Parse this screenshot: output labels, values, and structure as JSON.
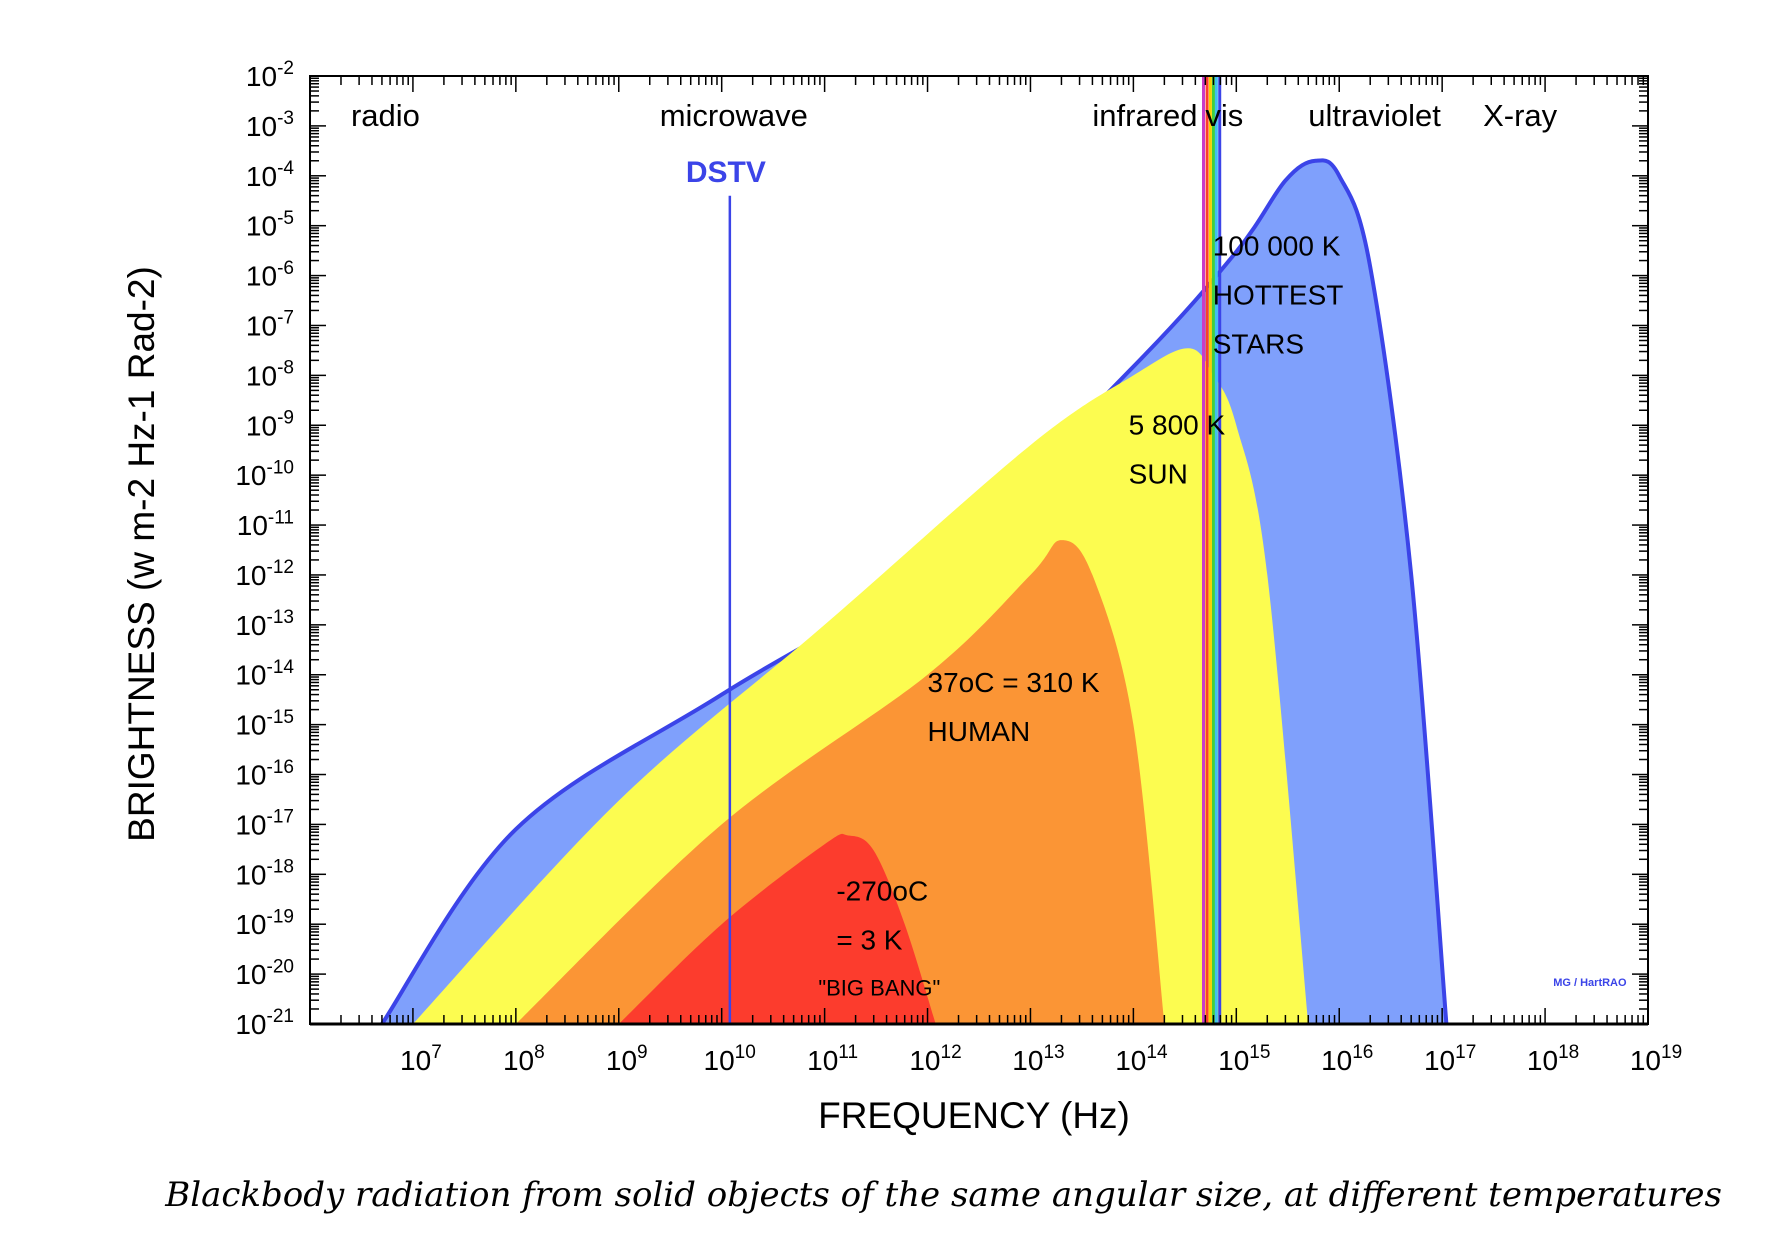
{
  "caption": "Blackbody radiation from solid objects of the same angular size, at different temperatures",
  "chart_data": {
    "type": "area",
    "xlabel": "FREQUENCY (Hz)",
    "ylabel": "BRIGHTNESS (w m-2 Hz-1 Rad-2)",
    "x_scale": "log",
    "y_scale": "log",
    "xlim": [
      1000000.0,
      1e+19
    ],
    "ylim": [
      1e-21,
      0.01
    ],
    "x_tick_exponents": [
      7,
      8,
      9,
      10,
      11,
      12,
      13,
      14,
      15,
      16,
      17,
      18,
      19
    ],
    "x_tick_base": "10",
    "y_tick_exponents": [
      -2,
      -3,
      -4,
      -5,
      -6,
      -7,
      -8,
      -9,
      -10,
      -11,
      -12,
      -13,
      -14,
      -15,
      -16,
      -17,
      -18,
      -19,
      -20,
      -21
    ],
    "y_tick_base": "10",
    "bands": [
      {
        "label": "radio",
        "x": 2500000.0
      },
      {
        "label": "microwave",
        "x": 2500000000.0
      },
      {
        "label": "infrared",
        "x": 40000000000000.0
      },
      {
        "label": "vis",
        "x": 500000000000000.0
      },
      {
        "label": "ultraviolet",
        "x": 5000000000000000.0
      },
      {
        "label": "X-ray",
        "x": 2.5e+17
      }
    ],
    "series": [
      {
        "name": "100 000 K",
        "label_lines": [
          "100 000 K",
          "HOTTEST",
          "STARS"
        ],
        "temperature_K": 100000,
        "color": "#7fa0fc",
        "outline": "#3b44e8",
        "x": [
          5000000.0,
          100000000.0,
          10000000000.0,
          1000000000000.0,
          100000000000000.0,
          1000000000000000.0,
          3000000000000000.0,
          5900000000000000.0,
          1e+16,
          2e+16,
          5e+16,
          1.1e+17
        ],
        "y": [
          1e-21,
          8e-18,
          4e-15,
          1.5e-12,
          1.5e-08,
          3e-06,
          8e-05,
          0.0002,
          0.0001,
          1.5e-06,
          1e-12,
          1e-21
        ]
      },
      {
        "name": "5 800 K",
        "label_lines": [
          "5 800 K",
          "SUN"
        ],
        "temperature_K": 5800,
        "color": "#fcfc50",
        "x": [
          10000000.0,
          1000000000.0,
          100000000000.0,
          10000000000000.0,
          100000000000000.0,
          340000000000000.0,
          600000000000000.0,
          1000000000000000.0,
          2000000000000000.0,
          5000000000000000.0
        ],
        "y": [
          1e-21,
          3e-17,
          1e-13,
          4e-10,
          1e-08,
          3.5e-08,
          1e-08,
          1e-09,
          1e-12,
          1e-21
        ],
        "dashed_outline": true
      },
      {
        "name": "310 K",
        "label_lines": [
          "37oC = 310 K",
          "HUMAN"
        ],
        "temperature_K": 310,
        "color": "#fb9535",
        "x": [
          100000000.0,
          10000000000.0,
          1000000000000.0,
          10000000000000.0,
          20000000000000.0,
          40000000000000.0,
          100000000000000.0,
          200000000000000.0
        ],
        "y": [
          1e-21,
          1e-17,
          1e-14,
          1e-12,
          5e-12,
          1e-12,
          1e-15,
          1e-21
        ]
      },
      {
        "name": "3 K",
        "label_lines": [
          "-270oC",
          "= 3 K",
          "\"BIG BANG\""
        ],
        "temperature_K": 3,
        "color": "#fc3c2d",
        "x": [
          1000000000.0,
          10000000000.0,
          100000000000.0,
          170000000000.0,
          300000000000.0,
          600000000000.0,
          1200000000000.0
        ],
        "y": [
          1e-21,
          1e-19,
          4e-18,
          6e-18,
          3e-18,
          1e-19,
          1e-21
        ]
      }
    ],
    "markers": [
      {
        "label": "DSTV",
        "x": 12000000000.0,
        "color": "#3b44e8"
      },
      {
        "label": "",
        "x": 480000000000000.0,
        "color": "#c83cc8"
      },
      {
        "label": "",
        "x": 520000000000000.0,
        "color": "#fc3c2d"
      },
      {
        "label": "",
        "x": 560000000000000.0,
        "color": "#f8d000"
      },
      {
        "label": "",
        "x": 600000000000000.0,
        "color": "#40d040"
      },
      {
        "label": "",
        "x": 640000000000000.0,
        "color": "#40c0f0"
      },
      {
        "label": "",
        "x": 690000000000000.0,
        "color": "#3b44e8"
      }
    ],
    "credit": "MG / HartRAO",
    "grid": false
  }
}
